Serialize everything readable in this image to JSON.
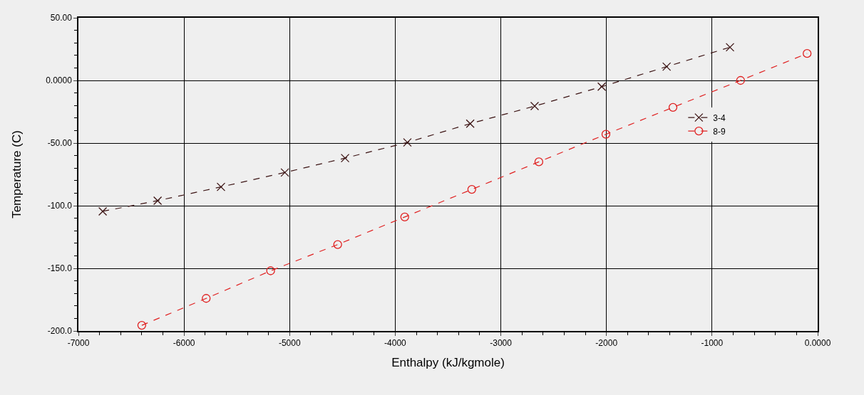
{
  "chart_data": {
    "type": "line",
    "xlabel": "Enthalpy (kJ/kgmole)",
    "ylabel": "Temperature (C)",
    "xlim": [
      -7000,
      0
    ],
    "ylim": [
      -200,
      50
    ],
    "xticks": [
      -7000,
      -6000,
      -5000,
      -4000,
      -3000,
      -2000,
      -1000,
      {
        "value": 0,
        "label": "0.0000"
      }
    ],
    "yticks": [
      {
        "value": -200,
        "label": "-200.0"
      },
      {
        "value": -150,
        "label": "-150.0"
      },
      {
        "value": -100,
        "label": "-100.0"
      },
      {
        "value": -50,
        "label": "-50.00"
      },
      {
        "value": 0,
        "label": "0.0000"
      },
      {
        "value": 50,
        "label": "50.00"
      }
    ],
    "grid": true,
    "legend": "right",
    "series": [
      {
        "name": "3-4",
        "color": "#3c1414",
        "marker": "cross",
        "line_style": "dashed",
        "x": [
          -6770,
          -6250,
          -5650,
          -5045,
          -4475,
          -3885,
          -3290,
          -2680,
          -2045,
          -1430,
          -830
        ],
        "values": [
          -104.5,
          -96,
          -85,
          -73.5,
          -62,
          -49.5,
          -34.5,
          -20.5,
          -5,
          11,
          26.5
        ]
      },
      {
        "name": "8-9",
        "color": "#e02020",
        "marker": "circle",
        "line_style": "dashed",
        "x": [
          -6400,
          -5790,
          -5180,
          -4545,
          -3910,
          -3275,
          -2640,
          -2005,
          -1370,
          -730,
          -100
        ],
        "values": [
          -195.5,
          -174,
          -152,
          -131,
          -109,
          -87,
          -65,
          -43,
          -21.5,
          0,
          21.5
        ]
      }
    ]
  }
}
